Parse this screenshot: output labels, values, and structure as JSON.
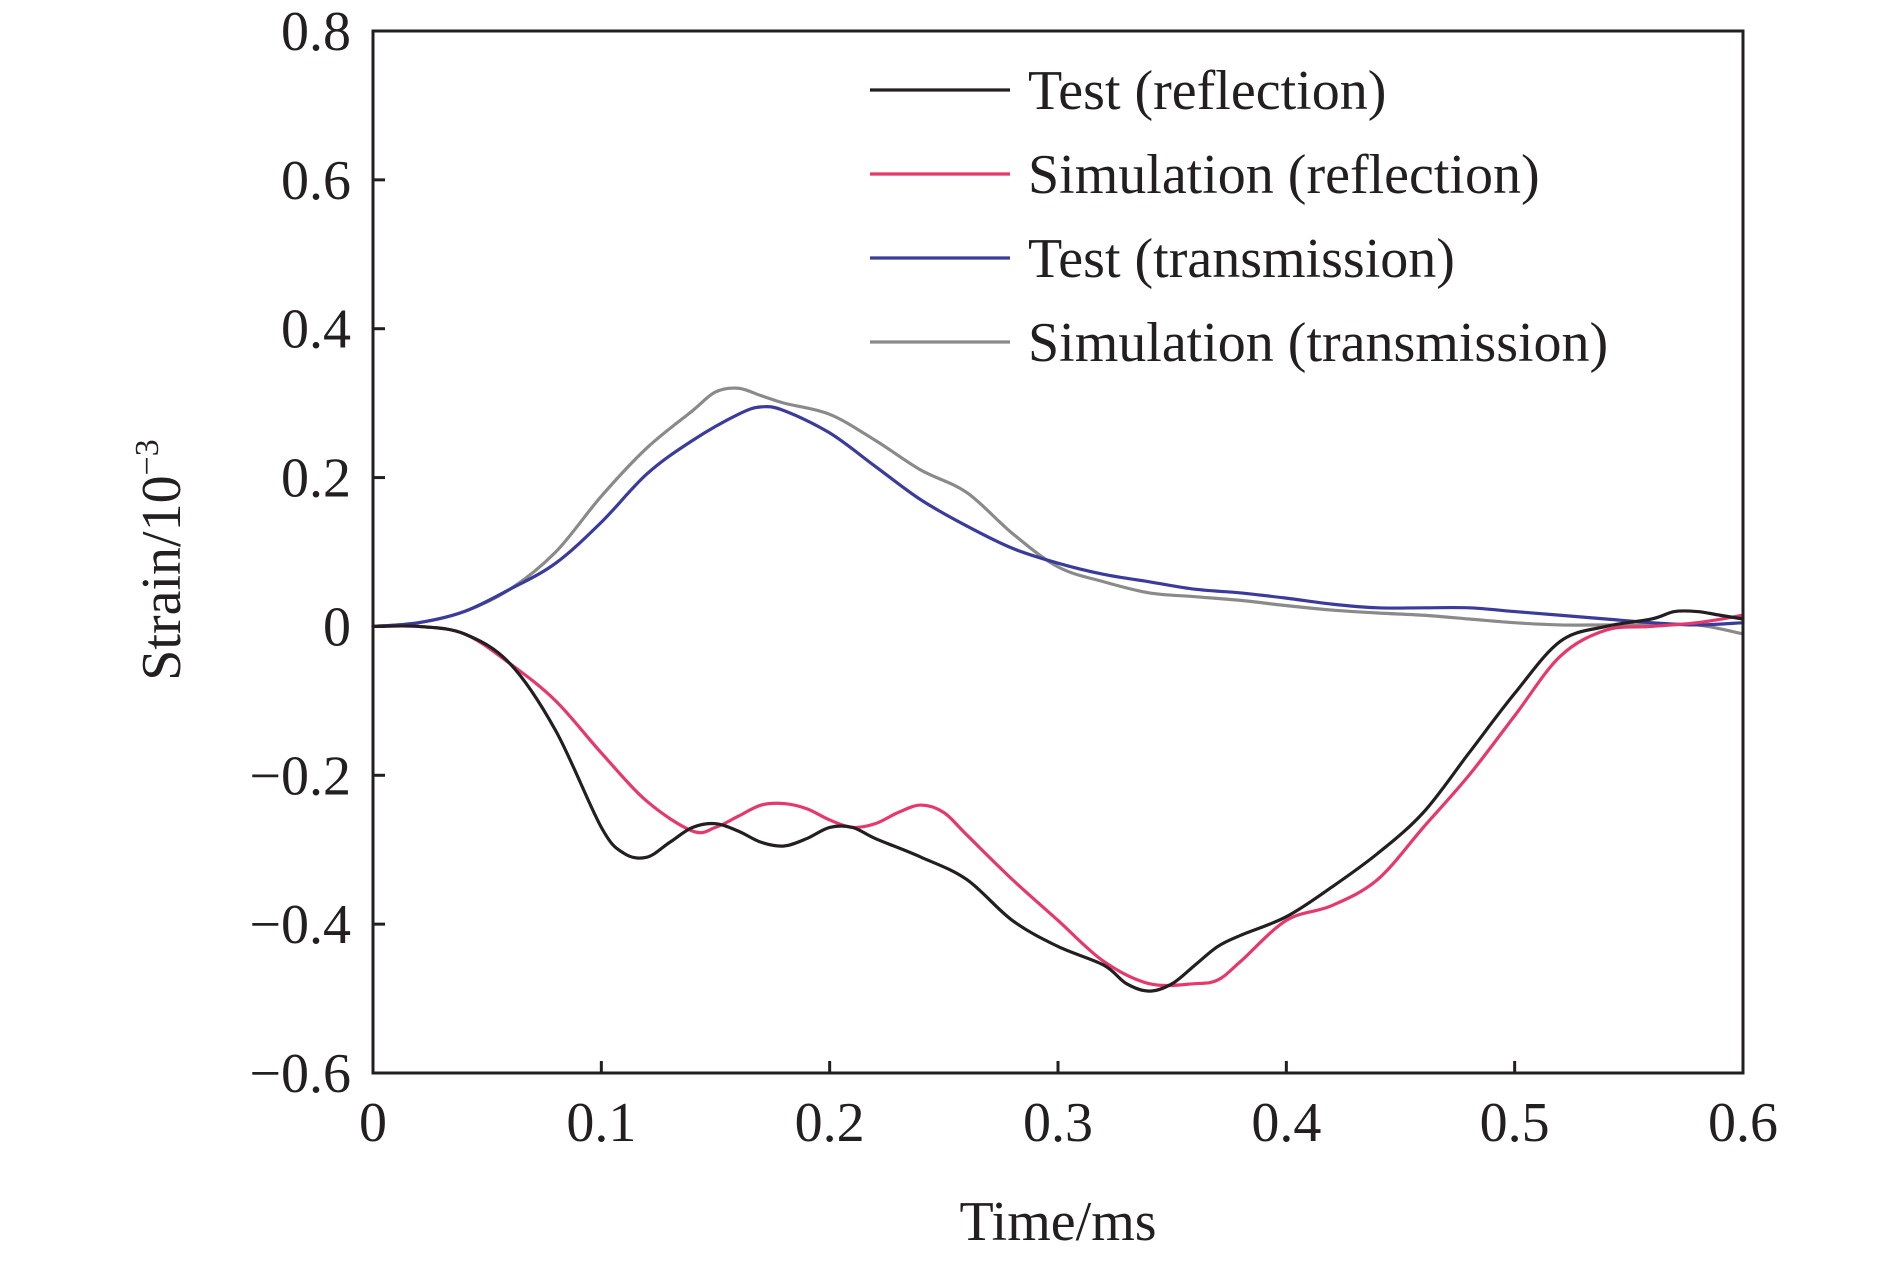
{
  "chart_data": {
    "type": "line",
    "title": "",
    "xlabel": "Time/ms",
    "ylabel": "Strain/10",
    "ylabel_exponent": "−3",
    "xlim": [
      0,
      0.6
    ],
    "ylim": [
      -0.6,
      0.8
    ],
    "x_ticks": [
      0,
      0.1,
      0.2,
      0.3,
      0.4,
      0.5,
      0.6
    ],
    "x_tick_labels": [
      "0",
      "0.1",
      "0.2",
      "0.3",
      "0.4",
      "0.5",
      "0.6"
    ],
    "y_ticks": [
      -0.6,
      -0.4,
      -0.2,
      0,
      0.2,
      0.4,
      0.6,
      0.8
    ],
    "y_tick_labels": [
      "−0.6",
      "−0.4",
      "−0.2",
      "0",
      "0.2",
      "0.4",
      "0.6",
      "0.8"
    ],
    "grid": false,
    "legend_position": "top-right",
    "series": [
      {
        "name": "Test (reflection)",
        "color": "#231f20",
        "points": [
          [
            0,
            0
          ],
          [
            0.02,
            0
          ],
          [
            0.04,
            -0.01
          ],
          [
            0.06,
            -0.05
          ],
          [
            0.08,
            -0.14
          ],
          [
            0.1,
            -0.27
          ],
          [
            0.11,
            -0.305
          ],
          [
            0.12,
            -0.31
          ],
          [
            0.13,
            -0.29
          ],
          [
            0.14,
            -0.27
          ],
          [
            0.15,
            -0.265
          ],
          [
            0.16,
            -0.275
          ],
          [
            0.17,
            -0.29
          ],
          [
            0.18,
            -0.295
          ],
          [
            0.19,
            -0.285
          ],
          [
            0.2,
            -0.27
          ],
          [
            0.21,
            -0.27
          ],
          [
            0.22,
            -0.285
          ],
          [
            0.24,
            -0.31
          ],
          [
            0.26,
            -0.34
          ],
          [
            0.28,
            -0.395
          ],
          [
            0.3,
            -0.43
          ],
          [
            0.32,
            -0.455
          ],
          [
            0.33,
            -0.48
          ],
          [
            0.34,
            -0.49
          ],
          [
            0.35,
            -0.48
          ],
          [
            0.36,
            -0.455
          ],
          [
            0.37,
            -0.43
          ],
          [
            0.38,
            -0.415
          ],
          [
            0.4,
            -0.39
          ],
          [
            0.42,
            -0.35
          ],
          [
            0.44,
            -0.305
          ],
          [
            0.46,
            -0.25
          ],
          [
            0.48,
            -0.17
          ],
          [
            0.5,
            -0.09
          ],
          [
            0.52,
            -0.02
          ],
          [
            0.54,
            0
          ],
          [
            0.56,
            0.01
          ],
          [
            0.57,
            0.02
          ],
          [
            0.58,
            0.02
          ],
          [
            0.59,
            0.015
          ],
          [
            0.6,
            0.01
          ]
        ]
      },
      {
        "name": "Simulation (reflection)",
        "color": "#e5386b",
        "points": [
          [
            0,
            0
          ],
          [
            0.02,
            0
          ],
          [
            0.04,
            -0.01
          ],
          [
            0.06,
            -0.05
          ],
          [
            0.08,
            -0.1
          ],
          [
            0.1,
            -0.17
          ],
          [
            0.12,
            -0.235
          ],
          [
            0.14,
            -0.275
          ],
          [
            0.15,
            -0.27
          ],
          [
            0.16,
            -0.255
          ],
          [
            0.17,
            -0.24
          ],
          [
            0.18,
            -0.238
          ],
          [
            0.19,
            -0.245
          ],
          [
            0.2,
            -0.26
          ],
          [
            0.21,
            -0.27
          ],
          [
            0.22,
            -0.265
          ],
          [
            0.23,
            -0.25
          ],
          [
            0.24,
            -0.24
          ],
          [
            0.25,
            -0.25
          ],
          [
            0.26,
            -0.28
          ],
          [
            0.28,
            -0.34
          ],
          [
            0.3,
            -0.395
          ],
          [
            0.32,
            -0.45
          ],
          [
            0.34,
            -0.48
          ],
          [
            0.36,
            -0.48
          ],
          [
            0.37,
            -0.475
          ],
          [
            0.38,
            -0.45
          ],
          [
            0.4,
            -0.395
          ],
          [
            0.42,
            -0.375
          ],
          [
            0.44,
            -0.34
          ],
          [
            0.46,
            -0.27
          ],
          [
            0.48,
            -0.2
          ],
          [
            0.5,
            -0.12
          ],
          [
            0.52,
            -0.04
          ],
          [
            0.54,
            -0.005
          ],
          [
            0.56,
            0
          ],
          [
            0.58,
            0.005
          ],
          [
            0.6,
            0.015
          ]
        ]
      },
      {
        "name": "Test (transmission)",
        "color": "#3b3b9c",
        "points": [
          [
            0,
            0
          ],
          [
            0.02,
            0.005
          ],
          [
            0.04,
            0.02
          ],
          [
            0.06,
            0.05
          ],
          [
            0.08,
            0.085
          ],
          [
            0.1,
            0.14
          ],
          [
            0.12,
            0.205
          ],
          [
            0.14,
            0.25
          ],
          [
            0.16,
            0.285
          ],
          [
            0.17,
            0.295
          ],
          [
            0.18,
            0.29
          ],
          [
            0.2,
            0.26
          ],
          [
            0.22,
            0.215
          ],
          [
            0.24,
            0.17
          ],
          [
            0.26,
            0.135
          ],
          [
            0.28,
            0.105
          ],
          [
            0.3,
            0.085
          ],
          [
            0.32,
            0.07
          ],
          [
            0.34,
            0.06
          ],
          [
            0.36,
            0.05
          ],
          [
            0.38,
            0.045
          ],
          [
            0.4,
            0.038
          ],
          [
            0.42,
            0.03
          ],
          [
            0.44,
            0.025
          ],
          [
            0.46,
            0.025
          ],
          [
            0.48,
            0.025
          ],
          [
            0.5,
            0.02
          ],
          [
            0.52,
            0.015
          ],
          [
            0.54,
            0.01
          ],
          [
            0.56,
            0.005
          ],
          [
            0.58,
            0.002
          ],
          [
            0.6,
            0.005
          ]
        ]
      },
      {
        "name": "Simulation (transmission)",
        "color": "#8a8a8a",
        "points": [
          [
            0,
            0
          ],
          [
            0.02,
            0.005
          ],
          [
            0.04,
            0.02
          ],
          [
            0.06,
            0.05
          ],
          [
            0.08,
            0.1
          ],
          [
            0.1,
            0.175
          ],
          [
            0.12,
            0.24
          ],
          [
            0.14,
            0.29
          ],
          [
            0.15,
            0.315
          ],
          [
            0.16,
            0.32
          ],
          [
            0.17,
            0.31
          ],
          [
            0.18,
            0.3
          ],
          [
            0.2,
            0.285
          ],
          [
            0.22,
            0.25
          ],
          [
            0.24,
            0.21
          ],
          [
            0.26,
            0.18
          ],
          [
            0.28,
            0.125
          ],
          [
            0.3,
            0.08
          ],
          [
            0.32,
            0.06
          ],
          [
            0.34,
            0.045
          ],
          [
            0.36,
            0.04
          ],
          [
            0.38,
            0.035
          ],
          [
            0.4,
            0.028
          ],
          [
            0.42,
            0.022
          ],
          [
            0.44,
            0.018
          ],
          [
            0.46,
            0.015
          ],
          [
            0.48,
            0.01
          ],
          [
            0.5,
            0.005
          ],
          [
            0.52,
            0.002
          ],
          [
            0.54,
            0.002
          ],
          [
            0.56,
            0.002
          ],
          [
            0.58,
            0.002
          ],
          [
            0.6,
            -0.01
          ]
        ]
      }
    ]
  }
}
